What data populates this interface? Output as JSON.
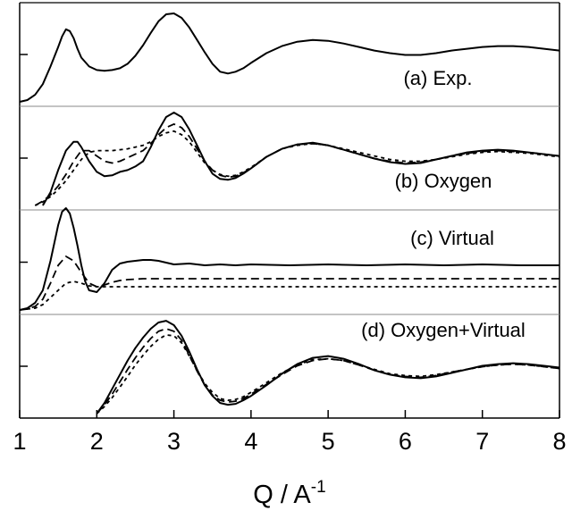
{
  "chart_data": {
    "type": "line",
    "xlabel": "Q / A",
    "xlabel_superscript": "-1",
    "xlim": [
      1,
      8
    ],
    "x_ticks": [
      "1",
      "2",
      "3",
      "4",
      "5",
      "6",
      "7",
      "8"
    ],
    "grid": false,
    "legend": "none",
    "line_colors": "#000000",
    "panels": [
      {
        "label": "(a) Exp.",
        "series": [
          {
            "style": "solid",
            "x": [
              1.0,
              1.1,
              1.2,
              1.3,
              1.4,
              1.5,
              1.55,
              1.6,
              1.65,
              1.7,
              1.75,
              1.8,
              1.9,
              2.0,
              2.1,
              2.2,
              2.3,
              2.4,
              2.5,
              2.6,
              2.7,
              2.8,
              2.9,
              3.0,
              3.1,
              3.2,
              3.3,
              3.4,
              3.5,
              3.6,
              3.7,
              3.8,
              3.9,
              4.0,
              4.2,
              4.4,
              4.6,
              4.8,
              5.0,
              5.2,
              5.4,
              5.6,
              5.8,
              6.0,
              6.2,
              6.4,
              6.6,
              6.8,
              7.0,
              7.2,
              7.4,
              7.6,
              7.8,
              8.0
            ],
            "y": [
              0.0,
              0.02,
              0.08,
              0.2,
              0.4,
              0.62,
              0.74,
              0.82,
              0.8,
              0.72,
              0.6,
              0.5,
              0.4,
              0.36,
              0.35,
              0.36,
              0.38,
              0.43,
              0.52,
              0.64,
              0.78,
              0.91,
              0.99,
              1.0,
              0.95,
              0.84,
              0.7,
              0.56,
              0.43,
              0.34,
              0.32,
              0.34,
              0.38,
              0.44,
              0.55,
              0.63,
              0.68,
              0.7,
              0.69,
              0.66,
              0.62,
              0.58,
              0.55,
              0.53,
              0.53,
              0.55,
              0.58,
              0.6,
              0.62,
              0.63,
              0.63,
              0.62,
              0.6,
              0.58
            ]
          }
        ]
      },
      {
        "label": "(b) Oxygen",
        "series": [
          {
            "style": "solid",
            "x": [
              1.3,
              1.4,
              1.5,
              1.6,
              1.7,
              1.75,
              1.8,
              1.9,
              2.0,
              2.1,
              2.2,
              2.3,
              2.4,
              2.5,
              2.6,
              2.7,
              2.8,
              2.9,
              3.0,
              3.1,
              3.2,
              3.3,
              3.4,
              3.5,
              3.6,
              3.7,
              3.8,
              3.9,
              4.0,
              4.2,
              4.4,
              4.6,
              4.8,
              5.0,
              5.2,
              5.4,
              5.6,
              5.8,
              6.0,
              6.2,
              6.4,
              6.6,
              6.8,
              7.0,
              7.2,
              7.4,
              7.6,
              7.8,
              8.0
            ],
            "y": [
              0.0,
              0.15,
              0.4,
              0.62,
              0.72,
              0.72,
              0.66,
              0.5,
              0.38,
              0.33,
              0.34,
              0.38,
              0.4,
              0.44,
              0.5,
              0.66,
              0.85,
              1.0,
              1.05,
              1.0,
              0.86,
              0.68,
              0.5,
              0.36,
              0.3,
              0.29,
              0.31,
              0.36,
              0.42,
              0.55,
              0.64,
              0.69,
              0.71,
              0.68,
              0.63,
              0.58,
              0.53,
              0.49,
              0.47,
              0.48,
              0.52,
              0.56,
              0.6,
              0.62,
              0.63,
              0.62,
              0.6,
              0.58,
              0.56
            ]
          },
          {
            "style": "dashed",
            "x": [
              1.2,
              1.3,
              1.4,
              1.5,
              1.6,
              1.7,
              1.8,
              1.9,
              2.0,
              2.1,
              2.2,
              2.3,
              2.4,
              2.5,
              2.6,
              2.7,
              2.8,
              2.9,
              3.0,
              3.1,
              3.2,
              3.3,
              3.4,
              3.5,
              3.6,
              3.7,
              3.8,
              3.9,
              4.0,
              4.2,
              4.4,
              4.6,
              4.8,
              5.0,
              5.2,
              5.4,
              5.6,
              5.8,
              6.0,
              6.2,
              6.4,
              6.6,
              6.8,
              7.0,
              7.2,
              7.4,
              7.6,
              7.8,
              8.0
            ],
            "y": [
              0.0,
              0.05,
              0.12,
              0.22,
              0.35,
              0.5,
              0.62,
              0.62,
              0.56,
              0.5,
              0.48,
              0.5,
              0.54,
              0.58,
              0.62,
              0.7,
              0.8,
              0.88,
              0.92,
              0.88,
              0.78,
              0.64,
              0.5,
              0.4,
              0.34,
              0.32,
              0.33,
              0.37,
              0.42,
              0.55,
              0.64,
              0.69,
              0.7,
              0.68,
              0.63,
              0.58,
              0.53,
              0.5,
              0.48,
              0.49,
              0.52,
              0.56,
              0.59,
              0.61,
              0.62,
              0.61,
              0.6,
              0.58,
              0.56
            ]
          },
          {
            "style": "dotted",
            "x": [
              1.2,
              1.3,
              1.4,
              1.5,
              1.6,
              1.7,
              1.8,
              1.9,
              2.0,
              2.1,
              2.2,
              2.3,
              2.4,
              2.5,
              2.6,
              2.7,
              2.8,
              2.9,
              3.0,
              3.1,
              3.2,
              3.3,
              3.4,
              3.5,
              3.6,
              3.7,
              3.8,
              3.9,
              4.0,
              4.2,
              4.4,
              4.6,
              4.8,
              5.0,
              5.2,
              5.4,
              5.6,
              5.8,
              6.0,
              6.2,
              6.4,
              6.6,
              6.8,
              7.0,
              7.2,
              7.4,
              7.6,
              7.8,
              8.0
            ],
            "y": [
              0.0,
              0.04,
              0.1,
              0.18,
              0.28,
              0.4,
              0.52,
              0.6,
              0.62,
              0.62,
              0.62,
              0.63,
              0.64,
              0.66,
              0.68,
              0.72,
              0.78,
              0.82,
              0.84,
              0.8,
              0.72,
              0.6,
              0.48,
              0.4,
              0.35,
              0.33,
              0.34,
              0.38,
              0.43,
              0.55,
              0.64,
              0.68,
              0.7,
              0.68,
              0.64,
              0.6,
              0.56,
              0.52,
              0.5,
              0.5,
              0.52,
              0.55,
              0.58,
              0.6,
              0.61,
              0.6,
              0.59,
              0.57,
              0.55
            ]
          }
        ]
      },
      {
        "label": "(c) Virtual",
        "series": [
          {
            "style": "solid",
            "x": [
              1.0,
              1.1,
              1.2,
              1.3,
              1.4,
              1.45,
              1.5,
              1.55,
              1.6,
              1.65,
              1.7,
              1.75,
              1.8,
              1.85,
              1.9,
              2.0,
              2.1,
              2.2,
              2.3,
              2.4,
              2.5,
              2.6,
              2.7,
              2.8,
              2.9,
              3.0,
              3.2,
              3.4,
              3.6,
              3.8,
              4.0,
              4.5,
              5.0,
              5.5,
              6.0,
              6.5,
              7.0,
              7.5,
              8.0
            ],
            "y": [
              0.0,
              0.02,
              0.08,
              0.22,
              0.55,
              0.75,
              0.95,
              1.1,
              1.14,
              1.08,
              0.92,
              0.72,
              0.5,
              0.32,
              0.22,
              0.2,
              0.3,
              0.45,
              0.52,
              0.54,
              0.55,
              0.56,
              0.56,
              0.55,
              0.53,
              0.51,
              0.52,
              0.5,
              0.51,
              0.5,
              0.51,
              0.5,
              0.51,
              0.5,
              0.51,
              0.5,
              0.51,
              0.5,
              0.5
            ]
          },
          {
            "style": "dashed",
            "x": [
              1.0,
              1.1,
              1.2,
              1.3,
              1.4,
              1.5,
              1.6,
              1.7,
              1.8,
              1.9,
              2.0,
              2.1,
              2.2,
              2.3,
              2.4,
              2.6,
              2.8,
              3.0,
              3.5,
              4.0,
              4.5,
              5.0,
              6.0,
              7.0,
              8.0
            ],
            "y": [
              0.0,
              0.01,
              0.04,
              0.12,
              0.3,
              0.5,
              0.6,
              0.55,
              0.42,
              0.3,
              0.26,
              0.28,
              0.31,
              0.33,
              0.34,
              0.35,
              0.35,
              0.35,
              0.35,
              0.35,
              0.35,
              0.35,
              0.35,
              0.35,
              0.35
            ]
          },
          {
            "style": "dotted",
            "x": [
              1.0,
              1.1,
              1.2,
              1.3,
              1.4,
              1.5,
              1.6,
              1.7,
              1.8,
              1.9,
              2.0,
              2.1,
              2.2,
              2.4,
              2.6,
              3.0,
              3.5,
              4.0,
              5.0,
              6.0,
              7.0,
              8.0
            ],
            "y": [
              0.0,
              0.01,
              0.02,
              0.06,
              0.14,
              0.22,
              0.3,
              0.32,
              0.3,
              0.27,
              0.26,
              0.26,
              0.26,
              0.26,
              0.26,
              0.26,
              0.26,
              0.26,
              0.26,
              0.26,
              0.26,
              0.26
            ]
          }
        ]
      },
      {
        "label": "(d) Oxygen+Virtual",
        "series": [
          {
            "style": "solid",
            "x": [
              2.0,
              2.1,
              2.2,
              2.3,
              2.4,
              2.5,
              2.6,
              2.7,
              2.8,
              2.9,
              3.0,
              3.1,
              3.2,
              3.3,
              3.4,
              3.5,
              3.6,
              3.7,
              3.8,
              3.9,
              4.0,
              4.2,
              4.4,
              4.6,
              4.8,
              5.0,
              5.2,
              5.4,
              5.6,
              5.8,
              6.0,
              6.2,
              6.4,
              6.6,
              6.8,
              7.0,
              7.2,
              7.4,
              7.6,
              7.8,
              8.0
            ],
            "y": [
              0.0,
              0.12,
              0.28,
              0.44,
              0.6,
              0.74,
              0.86,
              0.96,
              1.03,
              1.05,
              1.0,
              0.88,
              0.7,
              0.5,
              0.32,
              0.2,
              0.12,
              0.1,
              0.11,
              0.15,
              0.2,
              0.32,
              0.45,
              0.56,
              0.63,
              0.65,
              0.62,
              0.56,
              0.49,
              0.44,
              0.41,
              0.4,
              0.42,
              0.46,
              0.5,
              0.54,
              0.56,
              0.57,
              0.56,
              0.54,
              0.52
            ]
          },
          {
            "style": "dashed",
            "x": [
              2.0,
              2.1,
              2.2,
              2.3,
              2.4,
              2.5,
              2.6,
              2.7,
              2.8,
              2.9,
              3.0,
              3.1,
              3.2,
              3.3,
              3.4,
              3.5,
              3.6,
              3.7,
              3.8,
              3.9,
              4.0,
              4.2,
              4.4,
              4.6,
              4.8,
              5.0,
              5.2,
              5.4,
              5.6,
              5.8,
              6.0,
              6.2,
              6.4,
              6.6,
              6.8,
              7.0,
              7.2,
              7.4,
              7.6,
              7.8,
              8.0
            ],
            "y": [
              0.0,
              0.1,
              0.22,
              0.36,
              0.5,
              0.63,
              0.75,
              0.85,
              0.93,
              0.96,
              0.93,
              0.83,
              0.66,
              0.48,
              0.32,
              0.21,
              0.15,
              0.13,
              0.14,
              0.17,
              0.22,
              0.33,
              0.44,
              0.54,
              0.6,
              0.62,
              0.6,
              0.55,
              0.49,
              0.44,
              0.42,
              0.41,
              0.43,
              0.47,
              0.5,
              0.53,
              0.55,
              0.56,
              0.55,
              0.53,
              0.51
            ]
          },
          {
            "style": "dotted",
            "x": [
              2.0,
              2.1,
              2.2,
              2.3,
              2.4,
              2.5,
              2.6,
              2.7,
              2.8,
              2.9,
              3.0,
              3.1,
              3.2,
              3.3,
              3.4,
              3.5,
              3.6,
              3.7,
              3.8,
              3.9,
              4.0,
              4.2,
              4.4,
              4.6,
              4.8,
              5.0,
              5.2,
              5.4,
              5.6,
              5.8,
              6.0,
              6.2,
              6.4,
              6.6,
              6.8,
              7.0,
              7.2,
              7.4,
              7.6,
              7.8,
              8.0
            ],
            "y": [
              0.0,
              0.08,
              0.18,
              0.3,
              0.42,
              0.55,
              0.66,
              0.76,
              0.84,
              0.89,
              0.88,
              0.8,
              0.65,
              0.49,
              0.34,
              0.24,
              0.17,
              0.15,
              0.16,
              0.19,
              0.24,
              0.35,
              0.46,
              0.55,
              0.61,
              0.62,
              0.6,
              0.55,
              0.5,
              0.45,
              0.43,
              0.42,
              0.44,
              0.47,
              0.5,
              0.53,
              0.55,
              0.56,
              0.55,
              0.53,
              0.51
            ]
          }
        ]
      }
    ]
  }
}
